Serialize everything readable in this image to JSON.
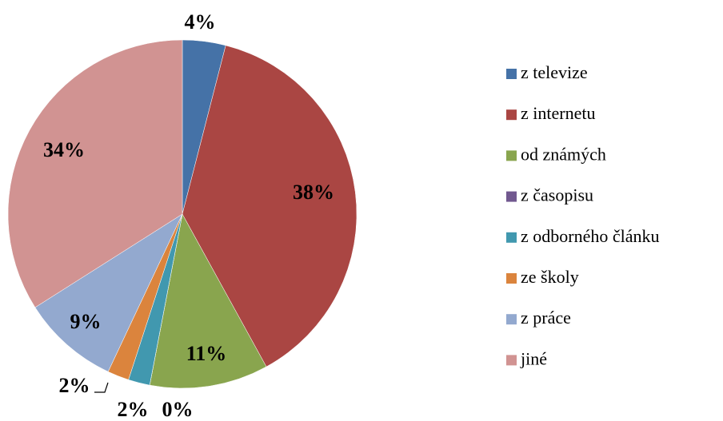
{
  "chart_data": {
    "type": "pie",
    "categories": [
      "z televize",
      "z internetu",
      "od známých",
      "z časopisu",
      "z odborného článku",
      "ze školy",
      "z práce",
      "jiné"
    ],
    "values": [
      4,
      38,
      11,
      0,
      2,
      2,
      9,
      34
    ],
    "value_labels": [
      "4%",
      "38%",
      "11%",
      "0%",
      "2%",
      "2%",
      "9%",
      "34%"
    ],
    "colors": [
      "#4572a7",
      "#aa4643",
      "#89a54e",
      "#71588f",
      "#4198af",
      "#db843d",
      "#93a9cf",
      "#d19392"
    ],
    "legend": "right"
  }
}
